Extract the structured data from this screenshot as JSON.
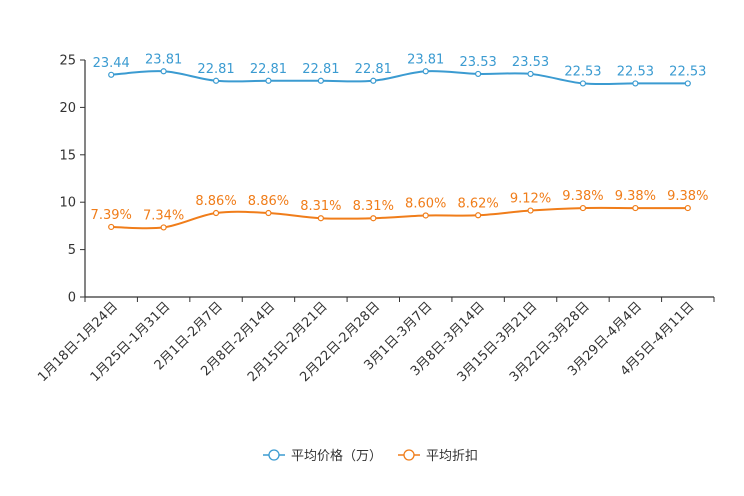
{
  "chart_data": {
    "type": "line",
    "title": "",
    "xlabel": "",
    "ylabel": "",
    "ylim": [
      0,
      25
    ],
    "yticks": [
      0,
      5,
      10,
      15,
      20,
      25
    ],
    "grid": false,
    "legend_position": "bottom-center",
    "categories": [
      "1月18日-1月24日",
      "1月25日-1月31日",
      "2月1日-2月7日",
      "2月8日-2月14日",
      "2月15日-2月21日",
      "2月22日-2月28日",
      "3月1日-3月7日",
      "3月8日-3月14日",
      "3月15日-3月21日",
      "3月22日-3月28日",
      "3月29日-4月4日",
      "4月5日-4月11日"
    ],
    "series": [
      {
        "name": "平均价格（万）",
        "color": "#3b9bd1",
        "values": [
          23.44,
          23.81,
          22.81,
          22.81,
          22.81,
          22.81,
          23.81,
          23.53,
          23.53,
          22.53,
          22.53,
          22.53
        ],
        "labels": [
          "23.44",
          "23.81",
          "22.81",
          "22.81",
          "22.81",
          "22.81",
          "23.81",
          "23.53",
          "23.53",
          "22.53",
          "22.53",
          "22.53"
        ]
      },
      {
        "name": "平均折扣",
        "color": "#f07d1a",
        "values": [
          7.39,
          7.34,
          8.86,
          8.86,
          8.31,
          8.31,
          8.6,
          8.62,
          9.12,
          9.38,
          9.38,
          9.38
        ],
        "labels": [
          "7.39%",
          "7.34%",
          "8.86%",
          "8.86%",
          "8.31%",
          "8.31%",
          "8.60%",
          "8.62%",
          "9.12%",
          "9.38%",
          "9.38%",
          "9.38%"
        ]
      }
    ]
  }
}
